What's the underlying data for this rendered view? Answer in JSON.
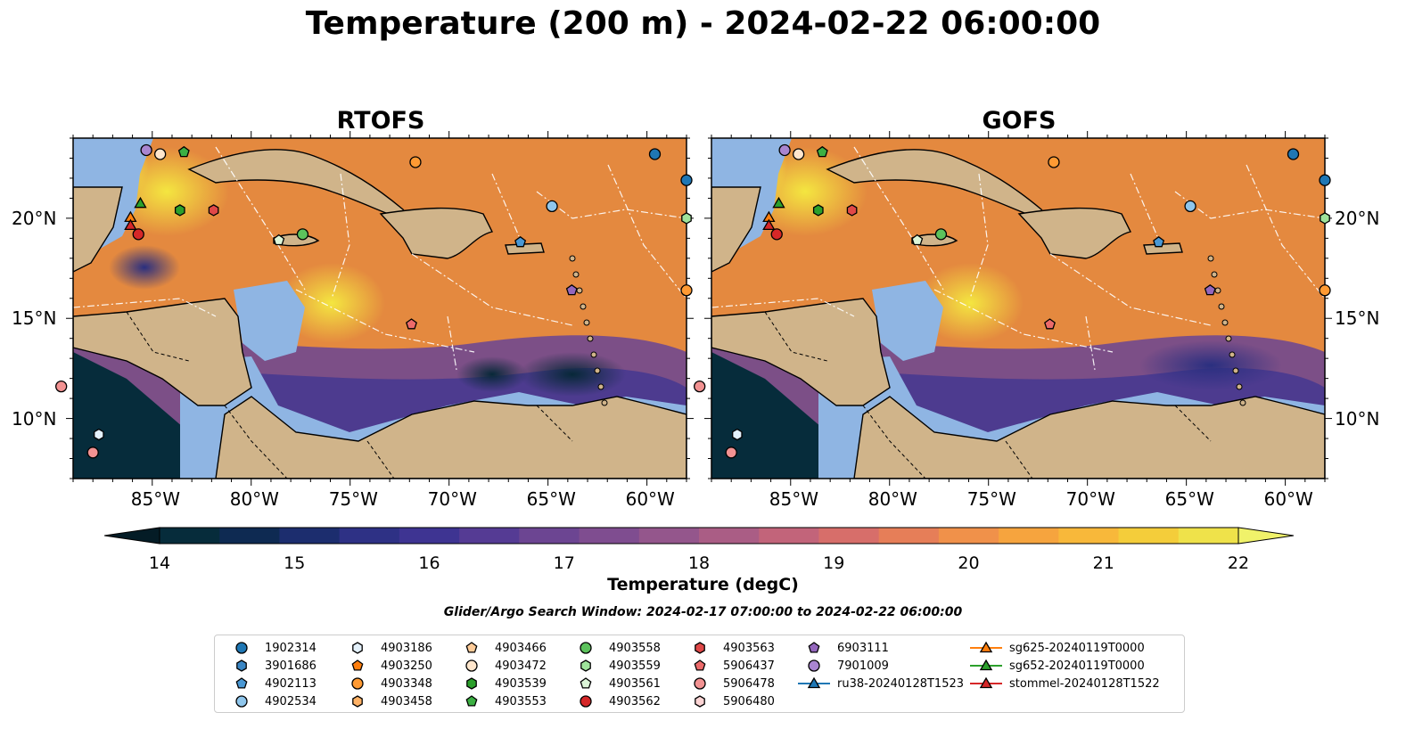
{
  "title": "Temperature (200 m) - 2024-02-22 06:00:00",
  "panels": [
    {
      "title": "RTOFS"
    },
    {
      "title": "GOFS"
    }
  ],
  "lon_ticks": [
    "85°W",
    "80°W",
    "75°W",
    "70°W",
    "65°W",
    "60°W"
  ],
  "lat_ticks": [
    "20°N",
    "15°N",
    "10°N"
  ],
  "colorbar": {
    "label": "Temperature (degC)",
    "ticks": [
      "14",
      "15",
      "16",
      "17",
      "18",
      "19",
      "20",
      "21",
      "22"
    ],
    "colors": [
      "#062c3b",
      "#0e2a52",
      "#1c2d6e",
      "#2e3185",
      "#3e3492",
      "#553b94",
      "#6c4592",
      "#7f4d90",
      "#94568c",
      "#aa5d85",
      "#c2647a",
      "#d76e6a",
      "#e67e58",
      "#f0914a",
      "#f6a43e",
      "#f8b83a",
      "#f4cd3a",
      "#efe24a"
    ],
    "under_color": "#041c26",
    "over_color": "#f0f26a"
  },
  "search_window": "Glider/Argo Search Window: 2024-02-17 07:00:00 to 2024-02-22 06:00:00",
  "legend": [
    {
      "label": "1902314",
      "marker": "circle",
      "color": "#1f77b4"
    },
    {
      "label": "3901686",
      "marker": "hexagon",
      "color": "#3a86c4"
    },
    {
      "label": "4902113",
      "marker": "pentagon",
      "color": "#4a98d4"
    },
    {
      "label": "4902534",
      "marker": "circle",
      "color": "#8fc6ec"
    },
    {
      "label": "4903186",
      "marker": "hexagon",
      "color": "#e4f1fb"
    },
    {
      "label": "4903250",
      "marker": "pentagon",
      "color": "#ff7f0e"
    },
    {
      "label": "4903348",
      "marker": "circle",
      "color": "#ff9a33"
    },
    {
      "label": "4903458",
      "marker": "hexagon",
      "color": "#ffb266"
    },
    {
      "label": "4903466",
      "marker": "pentagon",
      "color": "#ffcc99"
    },
    {
      "label": "4903472",
      "marker": "circle",
      "color": "#ffe6cc"
    },
    {
      "label": "4903539",
      "marker": "hexagon",
      "color": "#2ca02c"
    },
    {
      "label": "4903553",
      "marker": "pentagon",
      "color": "#3cb043"
    },
    {
      "label": "4903558",
      "marker": "circle",
      "color": "#5cc25c"
    },
    {
      "label": "4903559",
      "marker": "hexagon",
      "color": "#9fe39b"
    },
    {
      "label": "4903561",
      "marker": "pentagon",
      "color": "#dcf5d8"
    },
    {
      "label": "4903562",
      "marker": "circle",
      "color": "#d62728"
    },
    {
      "label": "4903563",
      "marker": "hexagon",
      "color": "#e04848"
    },
    {
      "label": "5906437",
      "marker": "pentagon",
      "color": "#ec6a6a"
    },
    {
      "label": "5906478",
      "marker": "circle",
      "color": "#f29292"
    },
    {
      "label": "5906480",
      "marker": "hexagon",
      "color": "#fcd4d4"
    },
    {
      "label": "6903111",
      "marker": "pentagon",
      "color": "#9467bd"
    },
    {
      "label": "7901009",
      "marker": "circle",
      "color": "#a985d0"
    },
    {
      "label": "ru38-20240128T1523",
      "marker": "triangle-line",
      "color": "#1f77b4"
    },
    {
      "label": "sg625-20240119T0000",
      "marker": "triangle-line",
      "color": "#ff7f0e"
    },
    {
      "label": "sg652-20240119T0000",
      "marker": "triangle-line",
      "color": "#2ca02c"
    },
    {
      "label": "stommel-20240128T1522",
      "marker": "triangle-line",
      "color": "#d62728"
    }
  ],
  "map_markers": [
    {
      "id": "1902314",
      "lon": -59.6,
      "lat": 23.2
    },
    {
      "id": "1902314",
      "lon": -58.0,
      "lat": 21.9
    },
    {
      "id": "7901009",
      "lon": -85.3,
      "lat": 23.4
    },
    {
      "id": "4903472",
      "lon": -84.6,
      "lat": 23.2
    },
    {
      "id": "4903553",
      "lon": -83.4,
      "lat": 23.3
    },
    {
      "id": "4903348",
      "lon": -71.7,
      "lat": 22.8
    },
    {
      "id": "4902534",
      "lon": -64.8,
      "lat": 20.6
    },
    {
      "id": "4902113",
      "lon": -66.4,
      "lat": 18.8
    },
    {
      "id": "4903539",
      "lon": -83.6,
      "lat": 20.4
    },
    {
      "id": "4903563",
      "lon": -81.9,
      "lat": 20.4
    },
    {
      "id": "4903558",
      "lon": -77.4,
      "lat": 19.2
    },
    {
      "id": "4903561",
      "lon": -78.6,
      "lat": 18.9
    },
    {
      "id": "4903562",
      "lon": -85.7,
      "lat": 19.2
    },
    {
      "id": "5906437",
      "lon": -71.9,
      "lat": 14.7
    },
    {
      "id": "6903111",
      "lon": -63.8,
      "lat": 16.4
    },
    {
      "id": "4903348",
      "lon": -58.0,
      "lat": 16.4
    },
    {
      "id": "5906478",
      "lon": -89.6,
      "lat": 11.6
    },
    {
      "id": "4903186",
      "lon": -87.7,
      "lat": 9.2
    },
    {
      "id": "5906478",
      "lon": -88.0,
      "lat": 8.3
    },
    {
      "id": "4903559",
      "lon": -58.0,
      "lat": 20.0
    }
  ],
  "glider_markers": [
    {
      "id": "sg652-20240119T0000",
      "lon": -85.6,
      "lat": 20.7
    },
    {
      "id": "sg625-20240119T0000",
      "lon": -86.1,
      "lat": 20.0
    },
    {
      "id": "stommel-20240128T1522",
      "lon": -86.1,
      "lat": 19.6
    }
  ]
}
